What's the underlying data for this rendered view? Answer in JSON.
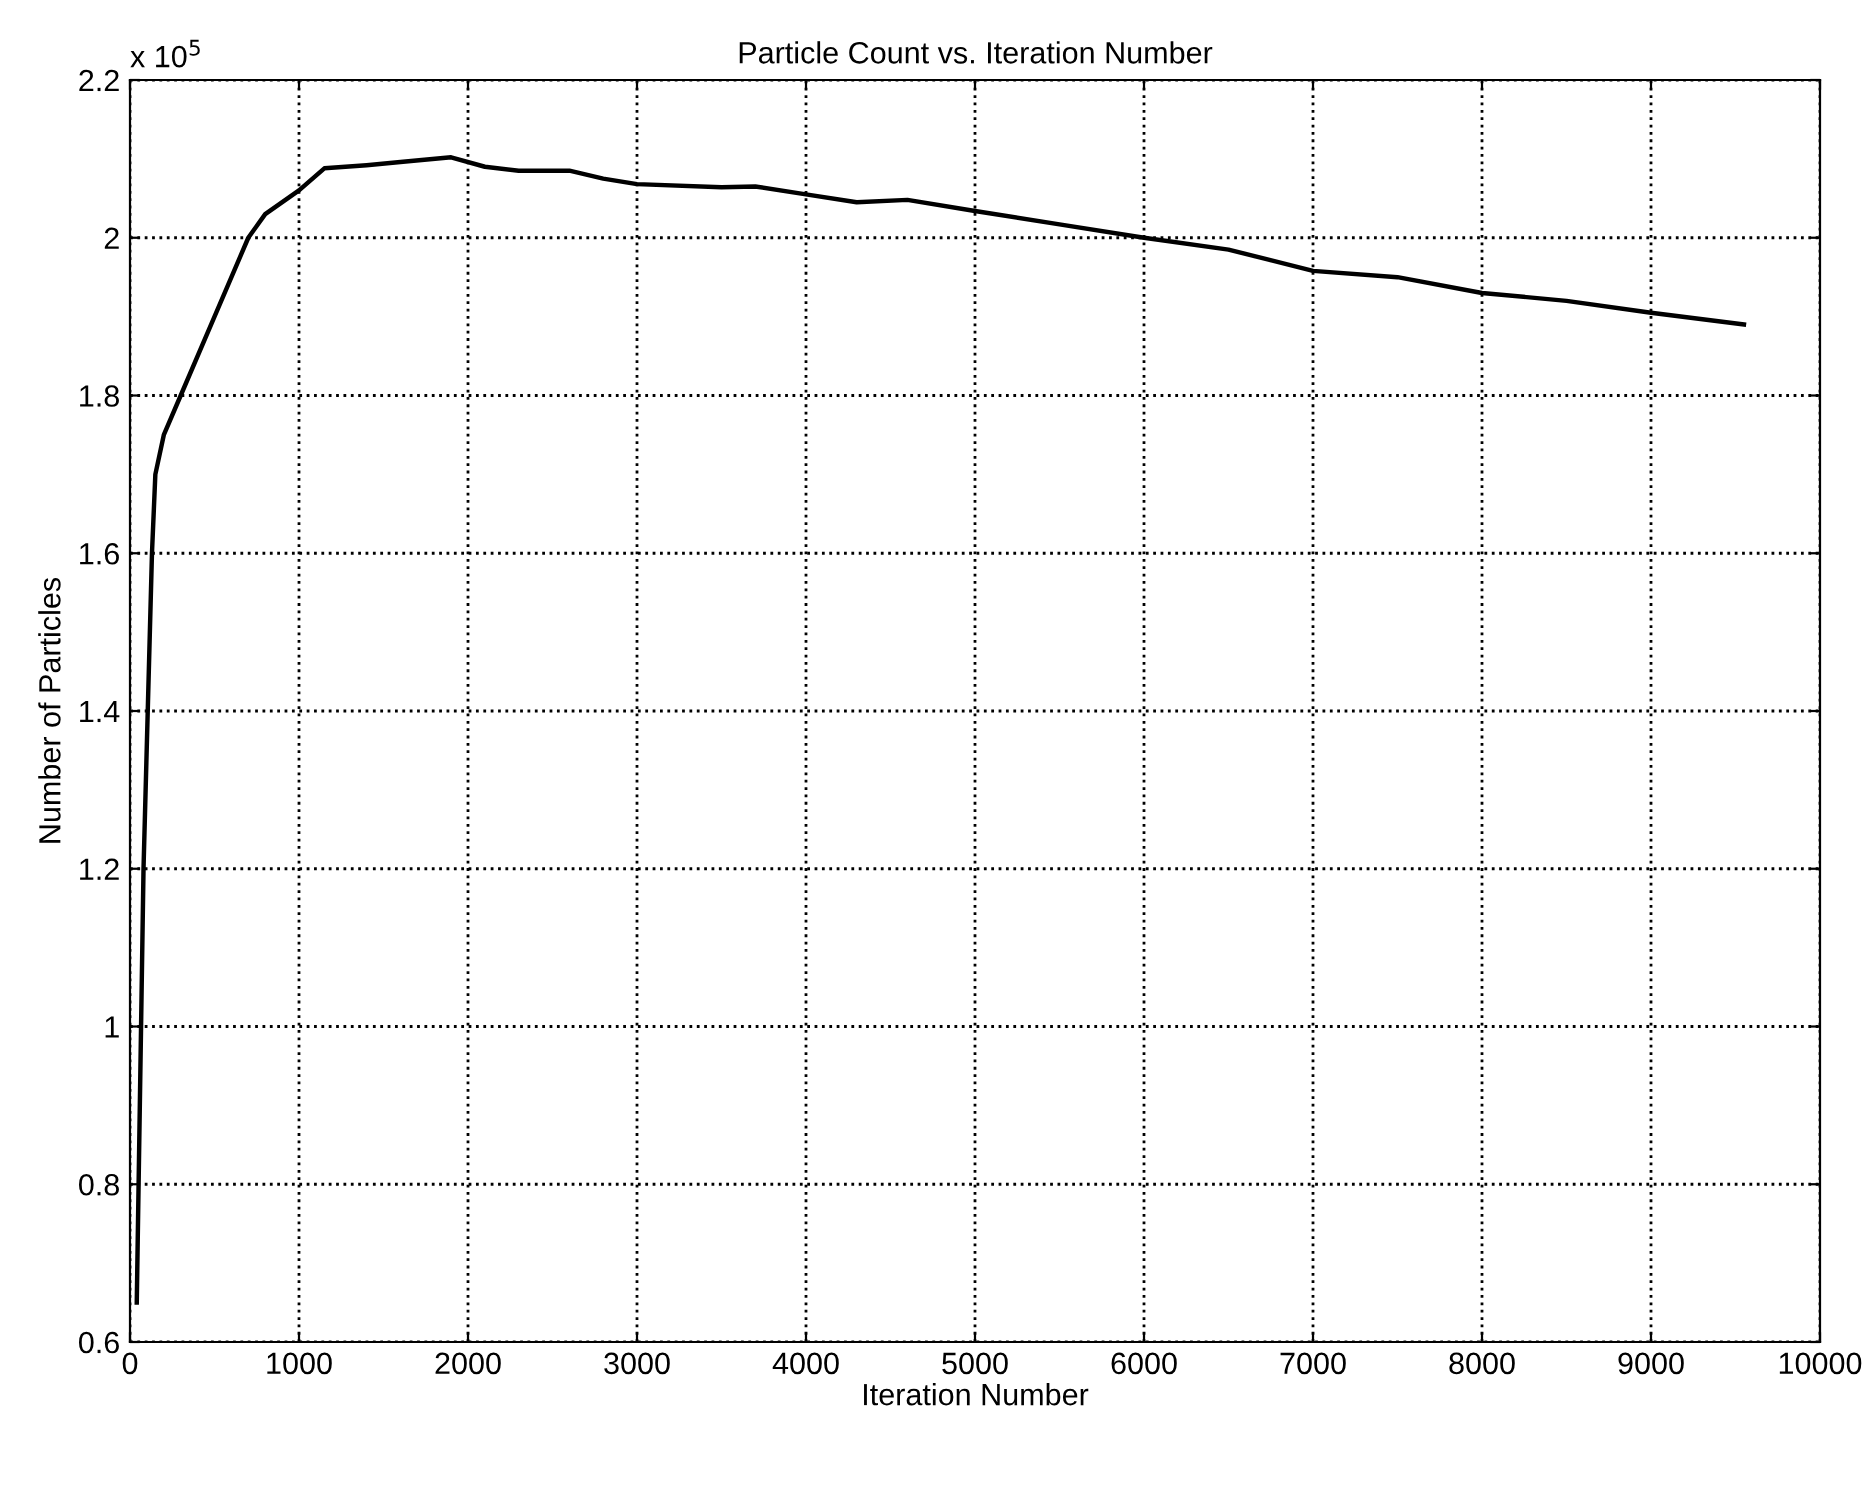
{
  "chart_data": {
    "type": "line",
    "title": "Particle Count vs. Iteration Number",
    "xlabel": "Iteration Number",
    "ylabel": "Number of Particles",
    "annotations": [
      "x 10$^{5}$"
    ],
    "x": [
      40,
      80,
      130,
      150,
      200,
      300,
      500,
      700,
      800,
      1000,
      1150,
      1400,
      1600,
      1900,
      2100,
      2300,
      2600,
      2800,
      3000,
      3500,
      3700,
      4000,
      4300,
      4600,
      5000,
      5500,
      6000,
      6500,
      7000,
      7500,
      8000,
      8500,
      9000,
      9550
    ],
    "series": [
      {
        "color": "#000000",
        "values": [
          0.65,
          1.2,
          1.6,
          1.7,
          1.75,
          1.8,
          1.9,
          2.0,
          2.03,
          2.06,
          2.088,
          2.092,
          2.096,
          2.102,
          2.09,
          2.085,
          2.085,
          2.075,
          2.068,
          2.064,
          2.065,
          2.055,
          2.045,
          2.048,
          2.034,
          2.017,
          2.0,
          1.985,
          1.958,
          1.95,
          1.93,
          1.92,
          1.905,
          1.89
        ]
      }
    ],
    "xlim": [
      0,
      10000
    ],
    "xticks": [
      0,
      1000,
      2000,
      3000,
      4000,
      5000,
      6000,
      7000,
      8000,
      9000,
      10000
    ],
    "ylim": [
      0.6,
      2.2
    ],
    "yticks": [
      0.6,
      0.8,
      1,
      1.2,
      1.4,
      1.6,
      1.8,
      2,
      2.2
    ],
    "grid": true
  }
}
